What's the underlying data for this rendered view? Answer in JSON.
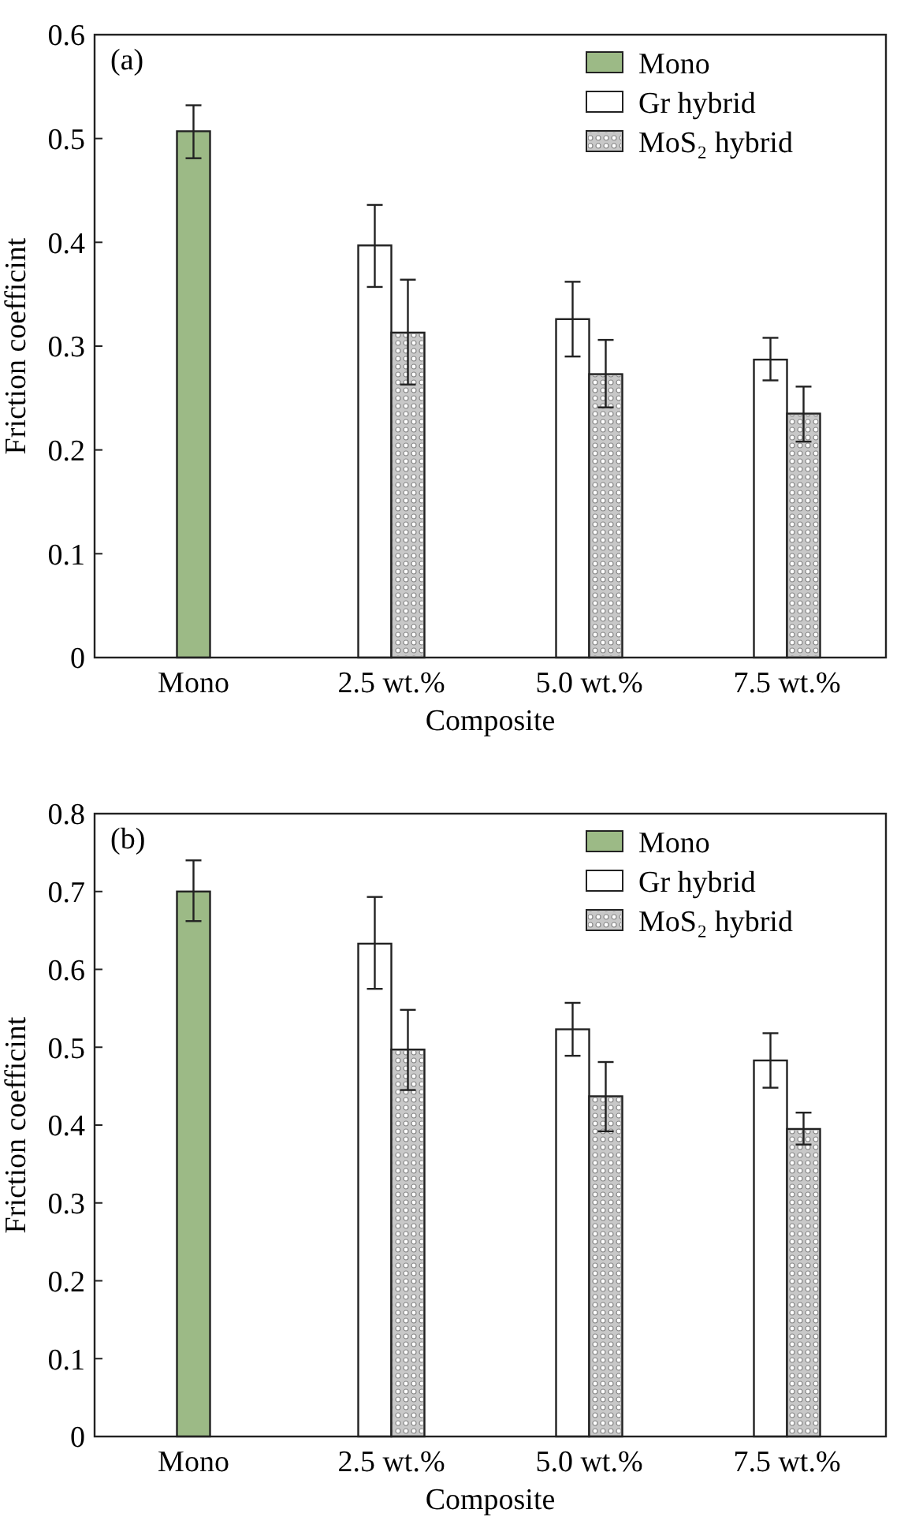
{
  "chart_data": [
    {
      "type": "bar",
      "title": "(a)",
      "xlabel": "Composite",
      "ylabel": "Friction coefficint",
      "categories": [
        "Mono",
        "2.5 wt.%",
        "5.0 wt.%",
        "7.5 wt.%"
      ],
      "series": [
        {
          "name": "Mono",
          "color": "#9cba86",
          "values": [
            0.507,
            null,
            null,
            null
          ],
          "errors": [
            [
              0.481,
              0.532
            ],
            null,
            null,
            null
          ]
        },
        {
          "name": "Gr hybrid",
          "color": "#ffffff",
          "values": [
            null,
            0.397,
            0.326,
            0.287
          ],
          "errors": [
            null,
            [
              0.357,
              0.436
            ],
            [
              0.29,
              0.362
            ],
            [
              0.267,
              0.308
            ]
          ]
        },
        {
          "name": "MoS₂ hybrid",
          "color": "#c8c8c8",
          "values": [
            null,
            0.313,
            0.273,
            0.235
          ],
          "errors": [
            null,
            [
              0.263,
              0.364
            ],
            [
              0.241,
              0.306
            ],
            [
              0.208,
              0.261
            ]
          ]
        }
      ],
      "ylim": [
        0,
        0.6
      ],
      "yticks": [
        0,
        0.1,
        0.2,
        0.3,
        0.4,
        0.5,
        0.6
      ],
      "legend": "top right",
      "grid": false
    },
    {
      "type": "bar",
      "title": "(b)",
      "xlabel": "Composite",
      "ylabel": "Friction coefficint",
      "categories": [
        "Mono",
        "2.5 wt.%",
        "5.0 wt.%",
        "7.5 wt.%"
      ],
      "series": [
        {
          "name": "Mono",
          "color": "#9cba86",
          "values": [
            0.7,
            null,
            null,
            null
          ],
          "errors": [
            [
              0.662,
              0.74
            ],
            null,
            null,
            null
          ]
        },
        {
          "name": "Gr hybrid",
          "color": "#ffffff",
          "values": [
            null,
            0.633,
            0.523,
            0.483
          ],
          "errors": [
            null,
            [
              0.575,
              0.693
            ],
            [
              0.489,
              0.557
            ],
            [
              0.448,
              0.518
            ]
          ]
        },
        {
          "name": "MoS₂ hybrid",
          "color": "#c8c8c8",
          "values": [
            null,
            0.497,
            0.437,
            0.395
          ],
          "errors": [
            null,
            [
              0.445,
              0.548
            ],
            [
              0.392,
              0.481
            ],
            [
              0.375,
              0.416
            ]
          ]
        }
      ],
      "ylim": [
        0,
        0.8
      ],
      "yticks": [
        0,
        0.1,
        0.2,
        0.3,
        0.4,
        0.5,
        0.6,
        0.7,
        0.8
      ],
      "legend": "top right",
      "grid": false
    }
  ]
}
